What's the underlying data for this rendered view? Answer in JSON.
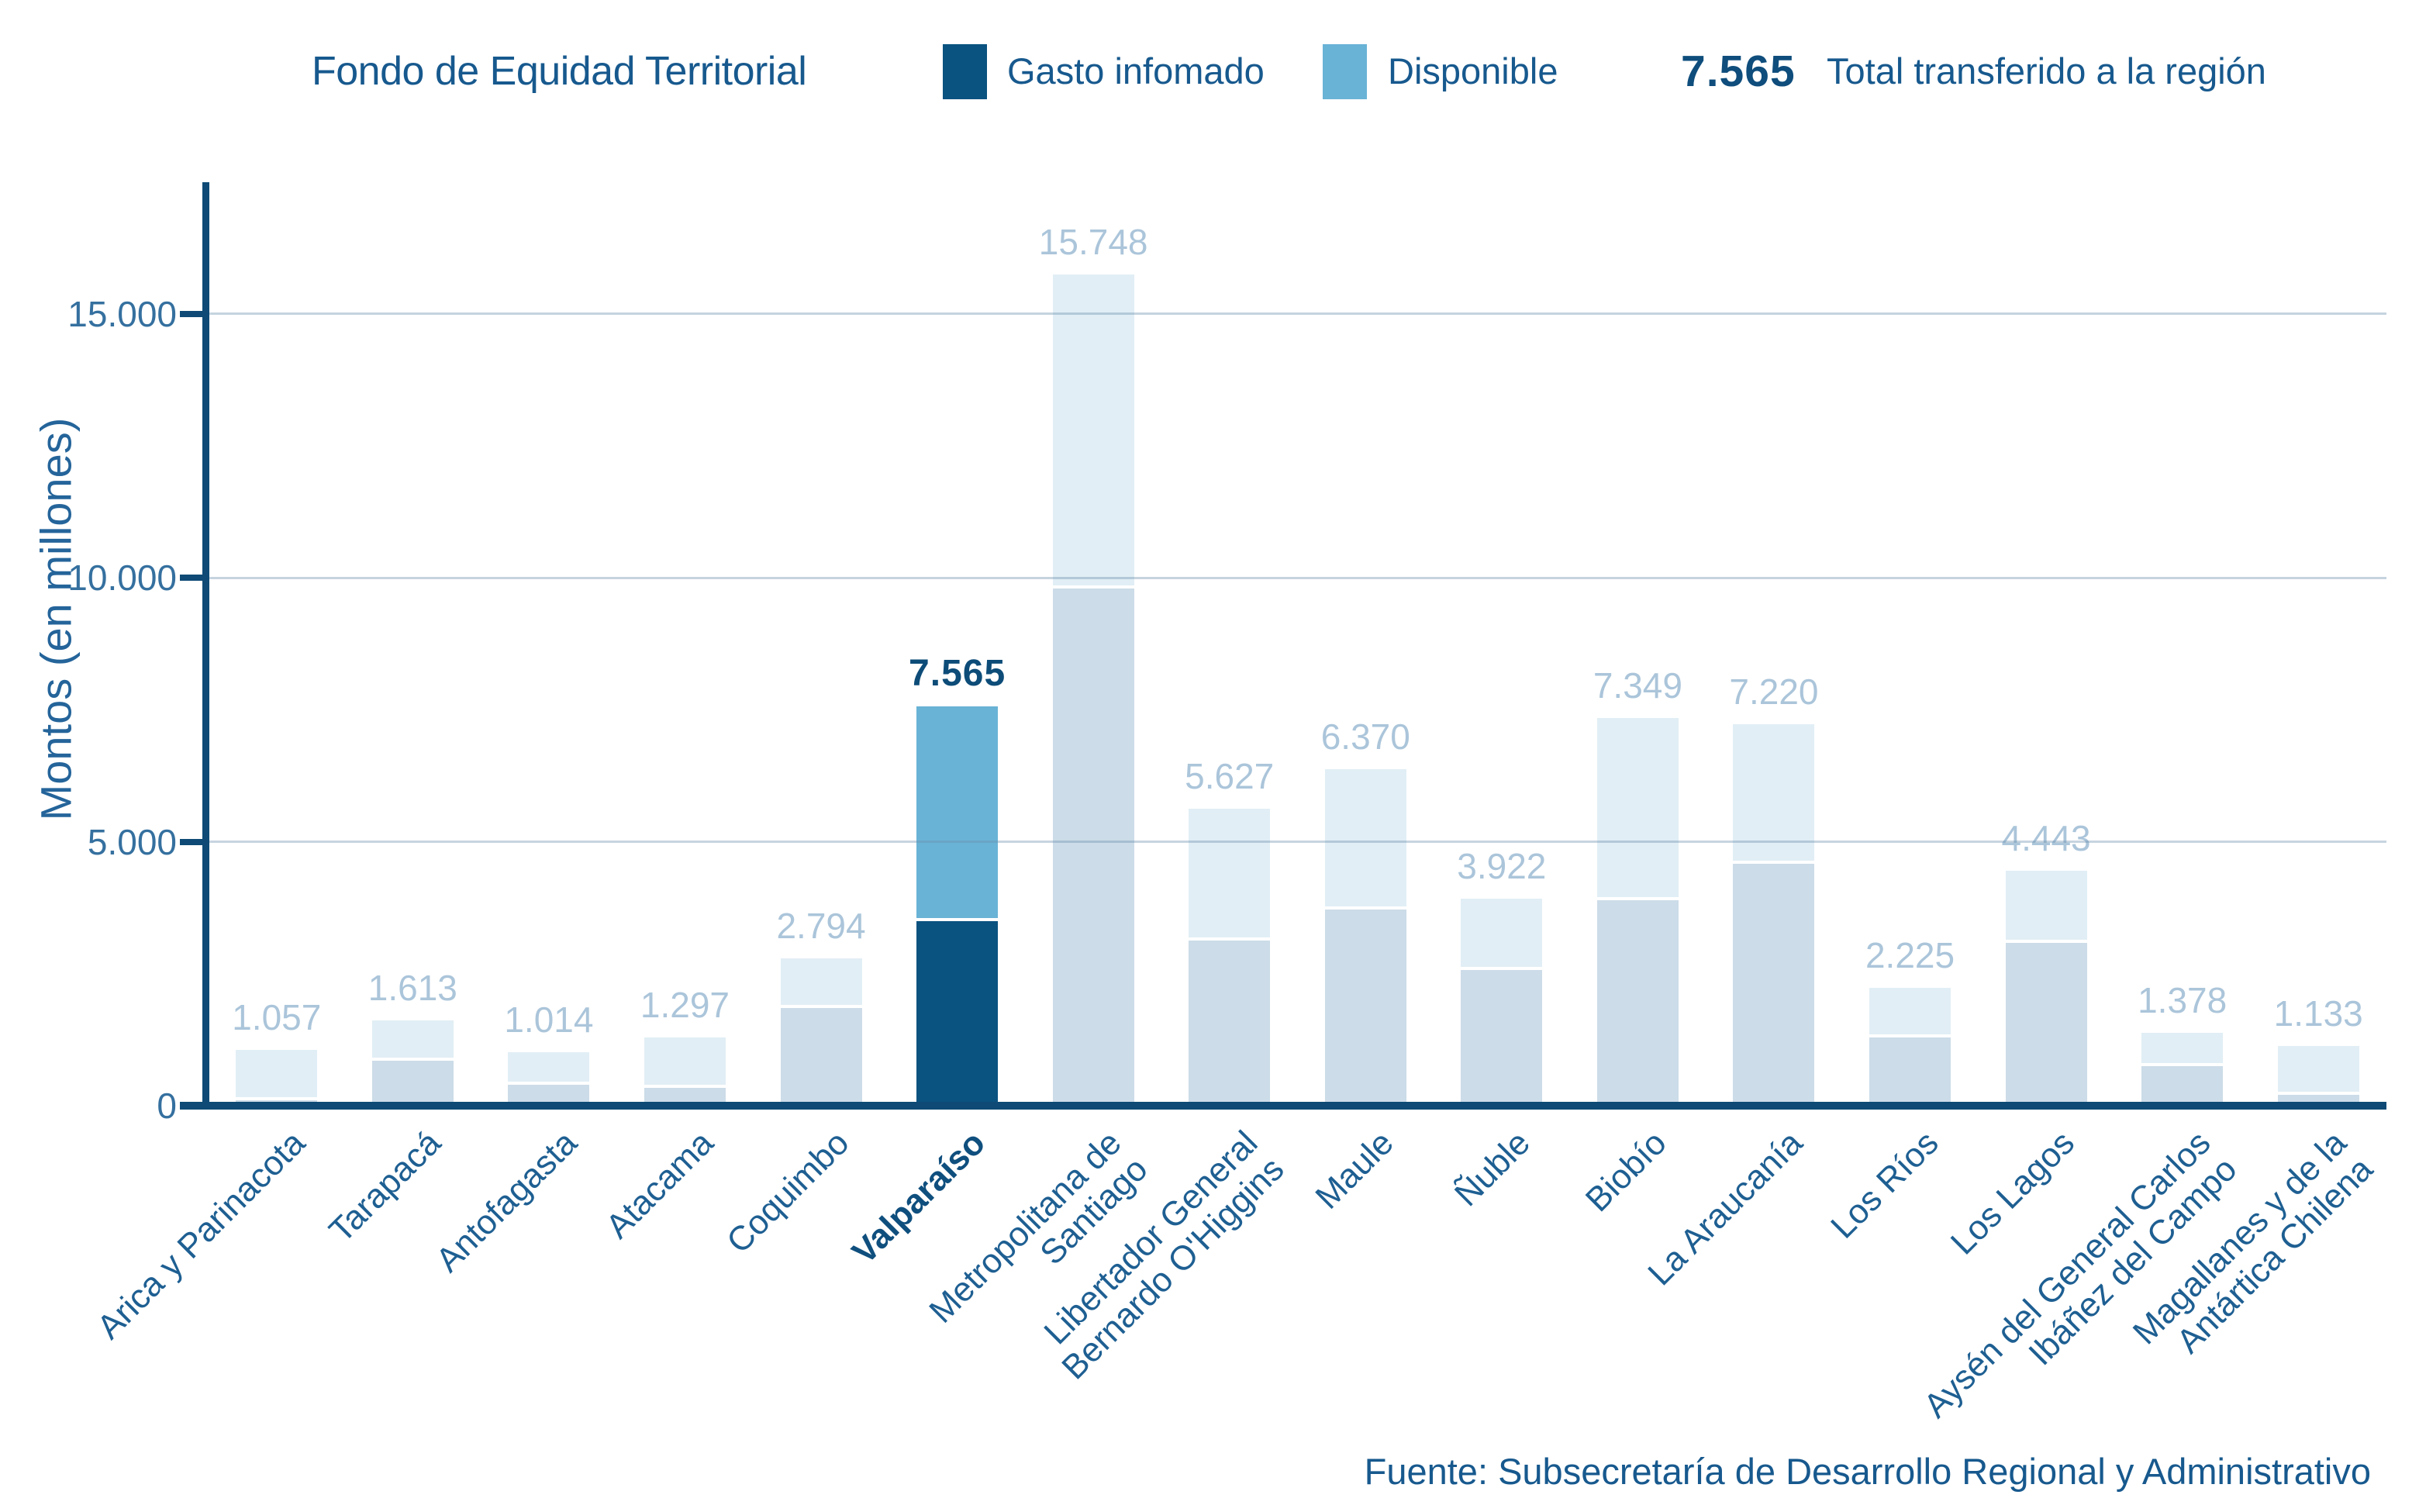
{
  "header": {
    "title": "Fondo de Equidad Territorial",
    "legend": [
      {
        "label": "Gasto infomado",
        "color": "#0A5280"
      },
      {
        "label": "Disponible",
        "color": "#69B3D6"
      }
    ],
    "total_value": "7.565",
    "total_label": "Total transferido a la región"
  },
  "footer": {
    "source": "Fuente: Subsecretaría de Desarrollo Regional y Administrativo"
  },
  "colors": {
    "highlight_gasto": "#0A5280",
    "highlight_disponible": "#69B3D6",
    "muted_gasto": "#CCDCE8",
    "muted_disponible": "#E1EEF5",
    "axis": "#0E4A75",
    "gridline": "#C9DDE9",
    "text_primary": "#17598E",
    "tick_text": "#35709F",
    "value_label_muted": "#ABC5DA",
    "value_label_highlight": "#0D4C78"
  },
  "chart_data": {
    "type": "bar",
    "stacked": true,
    "title": "Fondo de Equidad Territorial",
    "xlabel": "",
    "ylabel": "Montos (en millones)",
    "ylim": [
      0,
      17500
    ],
    "y_tick_values": [
      0,
      5000,
      10000,
      15000
    ],
    "y_tick_labels": [
      "0",
      "5.000",
      "10.000",
      "15.000"
    ],
    "grid": "horizontal",
    "legend_position": "top",
    "highlight_category": "Valparaíso",
    "highlight_index": 5,
    "categories": [
      "Arica y Parinacota",
      "Tarapacá",
      "Antofagasta",
      "Atacama",
      "Coquimbo",
      "Valparaíso",
      "Metropolitana de Santiago",
      "Libertador General Bernardo O'Higgins",
      "Maule",
      "Ñuble",
      "Biobío",
      "La Araucanía",
      "Los Ríos",
      "Los Lagos",
      "Aysén del General Carlos Ibáñez del Campo",
      "Magallanes y de la Antártica Chilena"
    ],
    "category_display_lines": [
      [
        "Arica y Parinacota"
      ],
      [
        "Tarapacá"
      ],
      [
        "Antofagasta"
      ],
      [
        "Atacama"
      ],
      [
        "Coquimbo"
      ],
      [
        "Valparaíso"
      ],
      [
        "Metropolitana de",
        "Santiago"
      ],
      [
        "Libertador General",
        "Bernardo O'Higgins"
      ],
      [
        "Maule"
      ],
      [
        "Ñuble"
      ],
      [
        "Biobío"
      ],
      [
        "La Araucanía"
      ],
      [
        "Los Ríos"
      ],
      [
        "Los Lagos"
      ],
      [
        "Aysén del General Carlos",
        "Ibáñez del Campo"
      ],
      [
        "Magallanes y de la",
        "Antártica Chilena"
      ]
    ],
    "totals": [
      1057,
      1613,
      1014,
      1297,
      2794,
      7565,
      15748,
      5627,
      6370,
      3922,
      7349,
      7220,
      2225,
      4443,
      1378,
      1133
    ],
    "totals_labels": [
      "1.057",
      "1.613",
      "1.014",
      "1.297",
      "2.794",
      "7.565",
      "15.748",
      "5.627",
      "6.370",
      "3.922",
      "7.349",
      "7.220",
      "2.225",
      "4.443",
      "1.378",
      "1.133"
    ],
    "series": [
      {
        "name": "Gasto infomado",
        "estimated_from_pixels": true,
        "values": [
          100,
          850,
          395,
          345,
          1845,
          3500,
          9800,
          3130,
          3710,
          2570,
          3885,
          4580,
          1290,
          3090,
          750,
          200
        ]
      },
      {
        "name": "Disponible",
        "estimated_from_pixels": true,
        "values": [
          957,
          763,
          619,
          952,
          949,
          4065,
          5948,
          2497,
          2660,
          1352,
          3464,
          2640,
          935,
          1353,
          628,
          933
        ]
      }
    ]
  }
}
